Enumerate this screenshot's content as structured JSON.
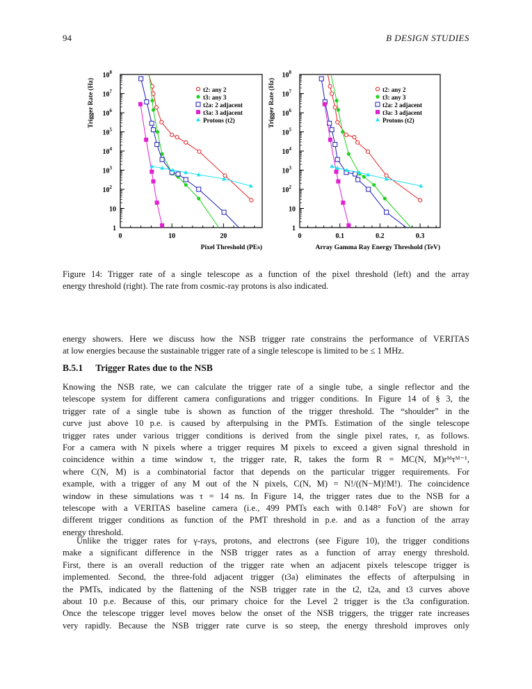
{
  "header": {
    "page_number": "94",
    "running_head": "B   DESIGN STUDIES"
  },
  "caption": [
    "Figure 14: Trigger rate of a single telescope as a function of the pixel threshold (left) and the array",
    "energy threshold (right). The rate from cosmic-ray protons is also indicated."
  ],
  "para0": [
    "energy showers. Here we discuss how the NSB trigger rate constrains the performance of VERITAS",
    "at low energies because the sustainable trigger rate of a single telescope is limited to be ≤ 1 MHz."
  ],
  "section": {
    "number": "B.5.1",
    "title": "Trigger Rates due to the NSB"
  },
  "para1": [
    "Knowing the NSB rate, we can calculate the trigger rate of a single tube, a single reflector and the",
    "telescope system for different camera configurations and trigger conditions. In Figure 14 of § 3, the",
    "trigger rate of a single tube is shown as function of the trigger threshold. The “shoulder” in the",
    "curve just above 10 p.e. is caused by afterpulsing in the PMTs. Estimation of the single telescope",
    "trigger rates under various trigger conditions is derived from the single pixel rates, r, as follows.",
    "For a camera with N pixels where a trigger requires M pixels to exceed a given signal threshold in",
    "coincidence within a time window τ, the trigger rate, R, takes the form R = MC(N, M)rᴹτᴹ⁻¹,",
    "where C(N, M) is a combinatorial factor that depends on the particular trigger requirements. For",
    "example, with a trigger of any M out of the N pixels, C(N, M) = N!/((N−M)!M!). The coincidence",
    "window in these simulations was τ = 14 ns. In Figure 14, the trigger rates due to the NSB for a",
    "telescope with a VERITAS baseline camera (i.e., 499 PMTs each with 0.148° FoV) are shown for",
    "different trigger conditions as function of the PMT threshold in p.e. and as a function of the array",
    "energy threshold."
  ],
  "para2": [
    "Unlike the trigger rates for γ-rays, protons, and electrons (see Figure 10), the trigger conditions",
    "make a significant difference in the NSB trigger rates as a function of array energy threshold.",
    "First, there is an overall reduction of the trigger rate when an adjacent pixels telescope trigger is",
    "implemented. Second, the three-fold adjacent trigger (t3a) eliminates the effects of afterpulsing in",
    "the PMTs, indicated by the flattening of the NSB trigger rate in the t2, t2a, and t3 curves above",
    "about 10 p.e. Because of this, our primary choice for the Level 2 trigger is the t3a configuration.",
    "Once the telescope trigger level moves below the onset of the NSB triggers, the trigger rate increases",
    "very rapidly. Because the NSB trigger rate curve is so steep, the energy threshold improves only"
  ],
  "chart_data": [
    {
      "type": "line",
      "title": "",
      "xlabel": "Pixel Threshold (PEs)",
      "ylabel": "Trigger Rate (Hz)",
      "xlim": [
        0,
        27.5
      ],
      "ylim": [
        1,
        100000000
      ],
      "yscale": "log",
      "xticks": [
        0,
        10,
        20
      ],
      "xtick_labels": [
        "0",
        "10",
        "20"
      ],
      "yticks": [
        1,
        10,
        100,
        1000,
        10000,
        100000,
        1000000,
        10000000,
        100000000
      ],
      "ytick_labels": [
        [
          "1",
          ""
        ],
        [
          "10",
          ""
        ],
        [
          "10",
          "2"
        ],
        [
          "10",
          "3"
        ],
        [
          "10",
          "4"
        ],
        [
          "10",
          "5"
        ],
        [
          "10",
          "6"
        ],
        [
          "10",
          "7"
        ],
        [
          "10",
          "8"
        ]
      ],
      "legend_position": "top-right",
      "series": [
        {
          "name": "t2: any 2",
          "color": "#e02020",
          "marker": "open-circle",
          "line_start": [
            5.5,
            100000000
          ],
          "x": [
            6.2,
            6.4,
            7.0,
            8.0,
            10,
            11,
            12.7,
            15.3,
            20.3,
            25.4
          ],
          "y": [
            24000000,
            10000000,
            1900000,
            320000,
            70000,
            53000,
            28000,
            9300,
            520,
            27
          ]
        },
        {
          "name": "t3: any 3",
          "color": "#20d020",
          "marker": "filled-circle",
          "line_start": [
            5.6,
            100000000
          ],
          "x": [
            6.2,
            6.4,
            7.2,
            8.1,
            10.1,
            11.2,
            12.7,
            15.2
          ],
          "y": [
            4300000,
            1400000,
            100000,
            7000,
            650,
            450,
            170,
            33
          ],
          "line_end": [
            19.1,
            1
          ]
        },
        {
          "name": "t2a: 2 adjacent",
          "color": "#1a1ab0",
          "marker": "open-square",
          "x": [
            4,
            5.1,
            6.1,
            6.4,
            7.1,
            8.1,
            10,
            11.2,
            12.7,
            15.2,
            20.1
          ],
          "y": [
            60000000,
            3700000,
            280000,
            130000,
            22000,
            3600,
            760,
            630,
            320,
            100,
            6.3
          ],
          "line_end": [
            23,
            1
          ]
        },
        {
          "name": "t3a: 3 adjacent",
          "color": "#e020d0",
          "marker": "filled-square",
          "x": [
            3.9,
            5.0,
            6.1,
            6.4,
            7.1,
            8.1
          ],
          "y": [
            2800000,
            39000,
            830,
            260,
            20,
            1.3
          ]
        },
        {
          "name": "Protons (t2)",
          "color": "#20e0f0",
          "marker": "filled-triangle",
          "x": [
            6.1,
            8.1,
            10.2,
            12.7,
            15.2,
            20.1,
            25.3
          ],
          "y": [
            1600,
            1300,
            1000,
            760,
            580,
            350,
            150
          ]
        }
      ]
    },
    {
      "type": "line",
      "title": "",
      "xlabel": "Array Gamma Ray Energy Threshold (TeV)",
      "ylabel": "Trigger Rate (Hz)",
      "xlim": [
        0,
        0.35
      ],
      "ylim": [
        1,
        100000000
      ],
      "yscale": "log",
      "xticks": [
        0,
        0.1,
        0.2,
        0.3
      ],
      "xtick_labels": [
        "0",
        "0.1",
        "0.2",
        "0.3"
      ],
      "yticks": [
        1,
        10,
        100,
        1000,
        10000,
        100000,
        1000000,
        10000000,
        100000000
      ],
      "ytick_labels": [
        [
          "1",
          ""
        ],
        [
          "10",
          ""
        ],
        [
          "10",
          "2"
        ],
        [
          "10",
          "3"
        ],
        [
          "10",
          "4"
        ],
        [
          "10",
          "5"
        ],
        [
          "10",
          "6"
        ],
        [
          "10",
          "7"
        ],
        [
          "10",
          "8"
        ]
      ],
      "legend_position": "top-right",
      "series": [
        {
          "name": "t2: any 2",
          "color": "#e02020",
          "marker": "open-circle",
          "line_start": [
            0.07,
            100000000
          ],
          "x": [
            0.0756,
            0.08,
            0.088,
            0.094,
            0.116,
            0.136,
            0.144,
            0.17,
            0.216,
            0.3
          ],
          "y": [
            24000000,
            10000000,
            1900000,
            320000,
            70000,
            53000,
            28000,
            9300,
            520,
            27
          ]
        },
        {
          "name": "t3: any 3",
          "color": "#20d020",
          "marker": "filled-circle",
          "line_start": [
            0.078,
            100000000
          ],
          "x": [
            0.092,
            0.096,
            0.107,
            0.122,
            0.149,
            0.16,
            0.185,
            0.212
          ],
          "y": [
            4300000,
            1400000,
            100000,
            7000,
            650,
            450,
            170,
            33
          ],
          "line_end": [
            0.277,
            1
          ]
        },
        {
          "name": "t2a: 2 adjacent",
          "color": "#1a1ab0",
          "marker": "open-square",
          "x": [
            0.054,
            0.063,
            0.074,
            0.08,
            0.088,
            0.094,
            0.116,
            0.138,
            0.145,
            0.171,
            0.216
          ],
          "y": [
            60000000,
            3700000,
            280000,
            130000,
            22000,
            3600,
            760,
            630,
            320,
            100,
            6.3
          ],
          "line_end": [
            0.266,
            1
          ]
        },
        {
          "name": "t3a: 3 adjacent",
          "color": "#e020d0",
          "marker": "filled-square",
          "x": [
            0.062,
            0.076,
            0.091,
            0.096,
            0.108,
            0.122
          ],
          "y": [
            2800000,
            39000,
            830,
            260,
            20,
            1.3
          ]
        },
        {
          "name": "Protons (t2)",
          "color": "#20e0f0",
          "marker": "filled-triangle",
          "x": [
            0.08,
            0.094,
            0.117,
            0.148,
            0.17,
            0.216,
            0.302
          ],
          "y": [
            1600,
            1300,
            1000,
            760,
            580,
            350,
            150
          ]
        }
      ]
    }
  ]
}
